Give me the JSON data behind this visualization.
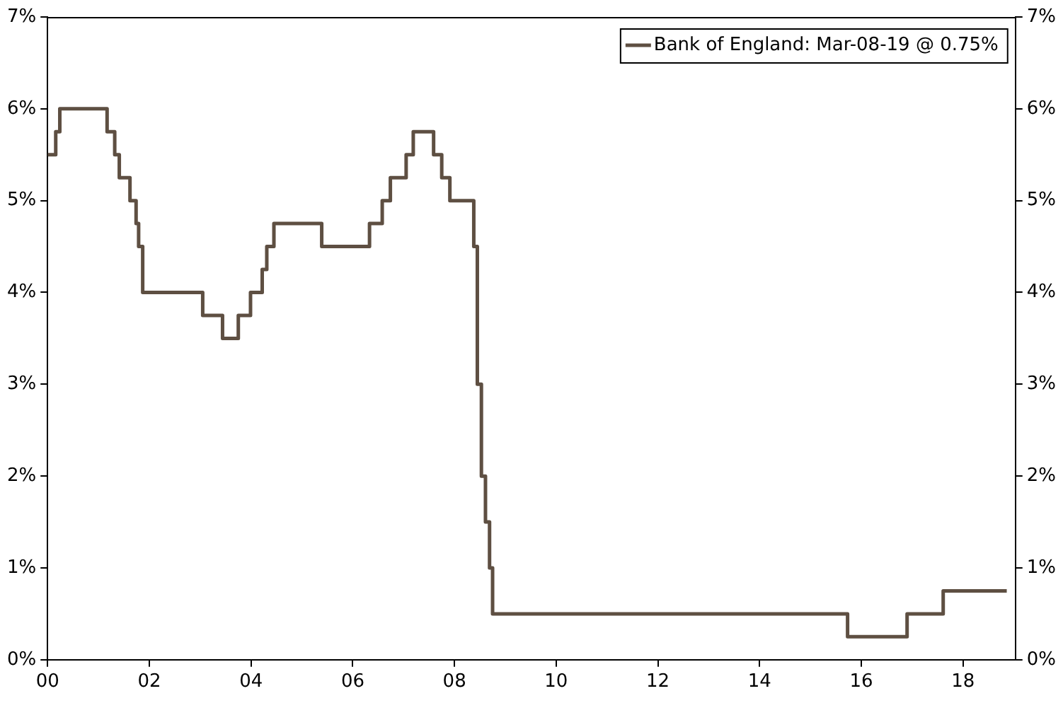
{
  "chart_data": {
    "type": "step",
    "x": [
      2000.0,
      2000.16,
      2000.24,
      2001.17,
      2001.32,
      2001.41,
      2001.62,
      2001.74,
      2001.79,
      2001.87,
      2003.05,
      2003.44,
      2003.75,
      2003.99,
      2004.22,
      2004.31,
      2004.45,
      2005.39,
      2006.33,
      2006.58,
      2006.74,
      2007.05,
      2007.19,
      2007.59,
      2007.75,
      2007.91,
      2008.38,
      2008.45,
      2008.53,
      2008.61,
      2008.69,
      2008.75,
      2015.73,
      2016.9,
      2017.61,
      2018.86
    ],
    "series": [
      {
        "name": "Bank of England: Mar-08-19 @ 0.75%",
        "color": "#5e4f42",
        "values": [
          5.5,
          5.75,
          6.0,
          5.75,
          5.5,
          5.25,
          5.0,
          4.75,
          4.5,
          4.0,
          3.75,
          3.5,
          3.75,
          4.0,
          4.25,
          4.5,
          4.75,
          4.5,
          4.75,
          5.0,
          5.25,
          5.5,
          5.75,
          5.5,
          5.25,
          5.0,
          4.5,
          3.0,
          2.0,
          1.5,
          1.0,
          0.5,
          0.25,
          0.5,
          0.75,
          0.75
        ]
      }
    ],
    "xlim": [
      2000,
      2019.03
    ],
    "xticks": [
      {
        "value": 2000,
        "label": "00"
      },
      {
        "value": 2002,
        "label": "02"
      },
      {
        "value": 2004,
        "label": "04"
      },
      {
        "value": 2006,
        "label": "06"
      },
      {
        "value": 2008,
        "label": "08"
      },
      {
        "value": 2010,
        "label": "10"
      },
      {
        "value": 2012,
        "label": "12"
      },
      {
        "value": 2014,
        "label": "14"
      },
      {
        "value": 2016,
        "label": "16"
      },
      {
        "value": 2018,
        "label": "18"
      }
    ],
    "ylim": [
      0,
      7
    ],
    "yticks": [
      {
        "value": 0,
        "label": "0%"
      },
      {
        "value": 1,
        "label": "1%"
      },
      {
        "value": 2,
        "label": "2%"
      },
      {
        "value": 3,
        "label": "3%"
      },
      {
        "value": 4,
        "label": "4%"
      },
      {
        "value": 5,
        "label": "5%"
      },
      {
        "value": 6,
        "label": "6%"
      },
      {
        "value": 7,
        "label": "7%"
      }
    ],
    "y2lim": [
      0,
      7
    ],
    "y2ticks": [
      {
        "value": 0,
        "label": "0%"
      },
      {
        "value": 1,
        "label": "1%"
      },
      {
        "value": 2,
        "label": "2%"
      },
      {
        "value": 3,
        "label": "3%"
      },
      {
        "value": 4,
        "label": "4%"
      },
      {
        "value": 5,
        "label": "5%"
      },
      {
        "value": 6,
        "label": "6%"
      },
      {
        "value": 7,
        "label": "7%"
      }
    ],
    "grid": false,
    "legend": "top right",
    "line_style": "solid"
  }
}
